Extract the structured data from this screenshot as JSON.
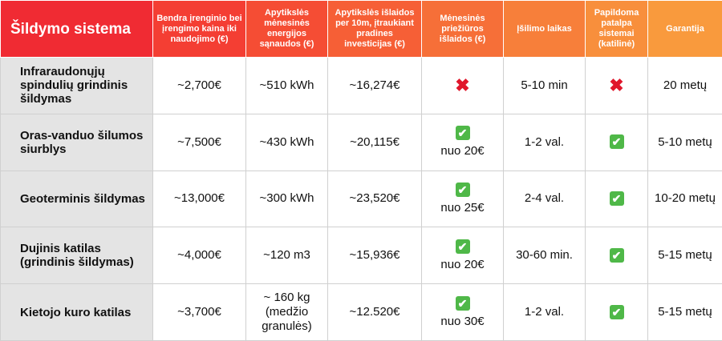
{
  "headers": [
    {
      "text": "Šildymo sistema",
      "color": "#f02b33"
    },
    {
      "text": "Bendra įrenginio bei įrengimo kaina iki naudojimo (€)",
      "color": "#f43e33"
    },
    {
      "text": "Apytikslės mėnesinės energijos sąnaudos (€)",
      "color": "#f54d34"
    },
    {
      "text": "Apytikslės išlaidos per 10m, įtraukiant pradines investicijas (€)",
      "color": "#f65f36"
    },
    {
      "text": "Mėnesinės priežiūros išlaidos (€)",
      "color": "#f66f38"
    },
    {
      "text": "Įšilimo laikas",
      "color": "#f77f3a"
    },
    {
      "text": "Papildoma patalpa sistemai (katilinė)",
      "color": "#f88f3c"
    },
    {
      "text": "Garantija",
      "color": "#f99a3d"
    }
  ],
  "rows": [
    {
      "name": "Infraraudonųjų spindulių grindinis šildymas",
      "price": "~2,700€",
      "energy": "~510 kWh",
      "cost10": "~16,274€",
      "maintenance": {
        "icon": "cross-icon",
        "text": ""
      },
      "heat_time": "5-10 min",
      "room": "cross-icon",
      "warranty": "20 metų"
    },
    {
      "name": "Oras-vanduo šilumos siurblys",
      "price": "~7,500€",
      "energy": "~430 kWh",
      "cost10": "~20,115€",
      "maintenance": {
        "icon": "check-icon",
        "text": "nuo 20€"
      },
      "heat_time": "1-2 val.",
      "room": "check-icon",
      "warranty": "5-10 metų"
    },
    {
      "name": "Geoterminis šildymas",
      "price": "~13,000€",
      "energy": "~300 kWh",
      "cost10": "~23,520€",
      "maintenance": {
        "icon": "check-icon",
        "text": "nuo 25€"
      },
      "heat_time": "2-4 val.",
      "room": "check-icon",
      "warranty": "10-20 metų"
    },
    {
      "name": "Dujinis katilas (grindinis šildymas)",
      "price": "~4,000€",
      "energy": "~120 m3",
      "cost10": "~15,936€",
      "maintenance": {
        "icon": "check-icon",
        "text": "nuo 20€"
      },
      "heat_time": "30-60 min.",
      "room": "check-icon",
      "warranty": "5-15 metų"
    },
    {
      "name": "Kietojo kuro katilas",
      "price": "~3,700€",
      "energy": "~ 160 kg (medžio granulės)",
      "cost10": "~12.520€",
      "maintenance": {
        "icon": "check-icon",
        "text": "nuo 30€"
      },
      "heat_time": "1-2 val.",
      "room": "check-icon",
      "warranty": "5-15 metų"
    }
  ],
  "colors": {
    "cross": "#e0162b",
    "check": "#4fb848",
    "row_header_bg": "#e4e4e4"
  }
}
